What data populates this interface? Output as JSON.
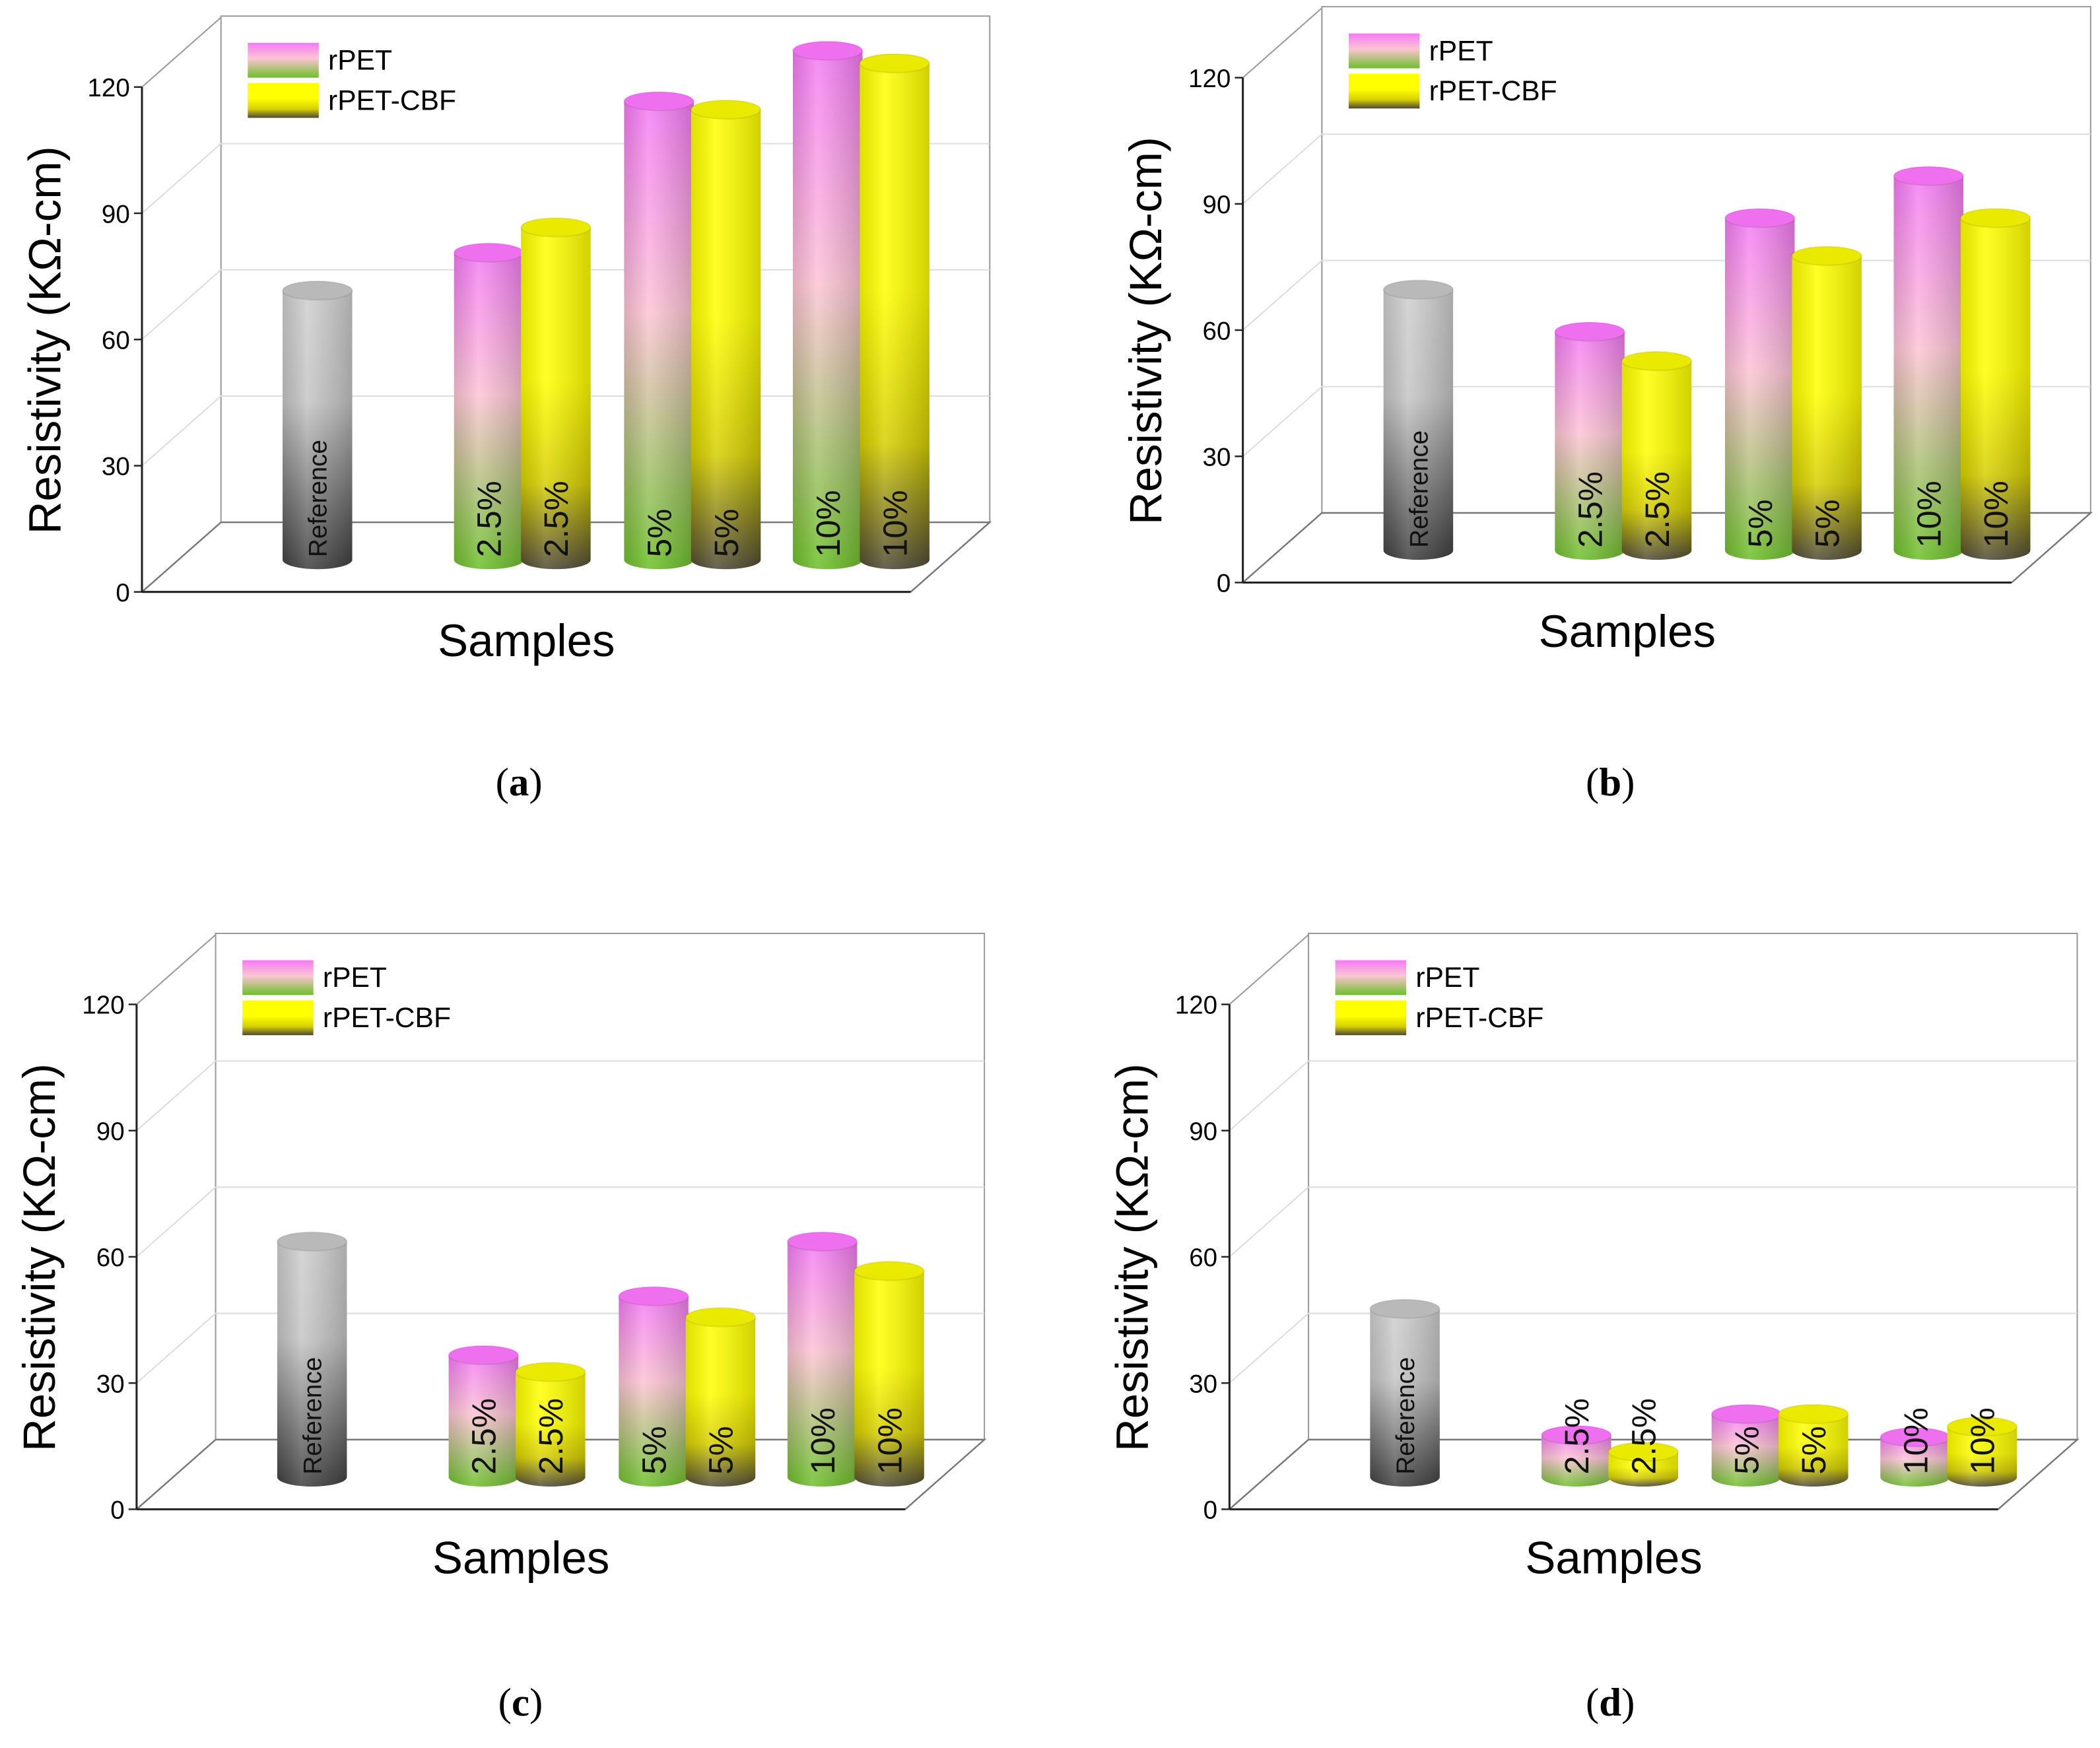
{
  "colors": {
    "rpet_top": "#f57af5",
    "rpet_mid": "#fcc4d4",
    "rpet_bottom": "#6cbf28",
    "cbf_top": "#ffff00",
    "cbf_mid": "#d6cf00",
    "cbf_bottom": "#4e4834",
    "ref_top": "#cfcfcf",
    "ref_bottom": "#3e3e3e"
  },
  "chart_data": [
    {
      "panel": "a",
      "caption": "a",
      "type": "bar",
      "title": "",
      "xlabel": "Samples",
      "ylabel": "Resistivity (KΩ-cm)",
      "ylim": [
        0,
        120
      ],
      "yticks": [
        "0",
        "30",
        "60",
        "90",
        "120"
      ],
      "grid": true,
      "legend": {
        "placement": "top-left",
        "entries": [
          "rPET",
          "rPET-CBF"
        ]
      },
      "reference": {
        "label": "Reference",
        "value": 64
      },
      "categories": [
        "2.5%",
        "5%",
        "10%"
      ],
      "series": [
        {
          "name": "rPET",
          "values": [
            73,
            109,
            121
          ]
        },
        {
          "name": "rPET-CBF",
          "values": [
            79,
            107,
            118
          ]
        }
      ]
    },
    {
      "panel": "b",
      "caption": "b",
      "type": "bar",
      "title": "",
      "xlabel": "Samples",
      "ylabel": "Resistivity (KΩ-cm)",
      "ylim": [
        0,
        120
      ],
      "yticks": [
        "0",
        "30",
        "60",
        "90",
        "120"
      ],
      "grid": true,
      "legend": {
        "placement": "top-left",
        "entries": [
          "rPET",
          "rPET-CBF"
        ]
      },
      "reference": {
        "label": "Reference",
        "value": 62
      },
      "categories": [
        "2.5%",
        "5%",
        "10%"
      ],
      "series": [
        {
          "name": "rPET",
          "values": [
            52,
            79,
            89
          ]
        },
        {
          "name": "rPET-CBF",
          "values": [
            45,
            70,
            79
          ]
        }
      ]
    },
    {
      "panel": "c",
      "caption": "c",
      "type": "bar",
      "title": "",
      "xlabel": "Samples",
      "ylabel": "Resistivity (KΩ-cm)",
      "ylim": [
        0,
        120
      ],
      "yticks": [
        "0",
        "30",
        "60",
        "90",
        "120"
      ],
      "grid": true,
      "legend": {
        "placement": "top-left",
        "entries": [
          "rPET",
          "rPET-CBF"
        ]
      },
      "reference": {
        "label": "Reference",
        "value": 56
      },
      "categories": [
        "2.5%",
        "5%",
        "10%"
      ],
      "series": [
        {
          "name": "rPET",
          "values": [
            29,
            43,
            56
          ]
        },
        {
          "name": "rPET-CBF",
          "values": [
            25,
            38,
            49
          ]
        }
      ]
    },
    {
      "panel": "d",
      "caption": "d",
      "type": "bar",
      "title": "",
      "xlabel": "Samples",
      "ylabel": "Resistivity (KΩ-cm)",
      "ylim": [
        0,
        120
      ],
      "yticks": [
        "0",
        "30",
        "60",
        "90",
        "120"
      ],
      "grid": true,
      "legend": {
        "placement": "top-left",
        "entries": [
          "rPET",
          "rPET-CBF"
        ]
      },
      "reference": {
        "label": "Reference",
        "value": 40
      },
      "categories": [
        "2.5%",
        "5%",
        "10%"
      ],
      "series": [
        {
          "name": "rPET",
          "values": [
            10,
            15,
            9.5
          ]
        },
        {
          "name": "rPET-CBF",
          "values": [
            6,
            15,
            12
          ]
        }
      ]
    }
  ]
}
